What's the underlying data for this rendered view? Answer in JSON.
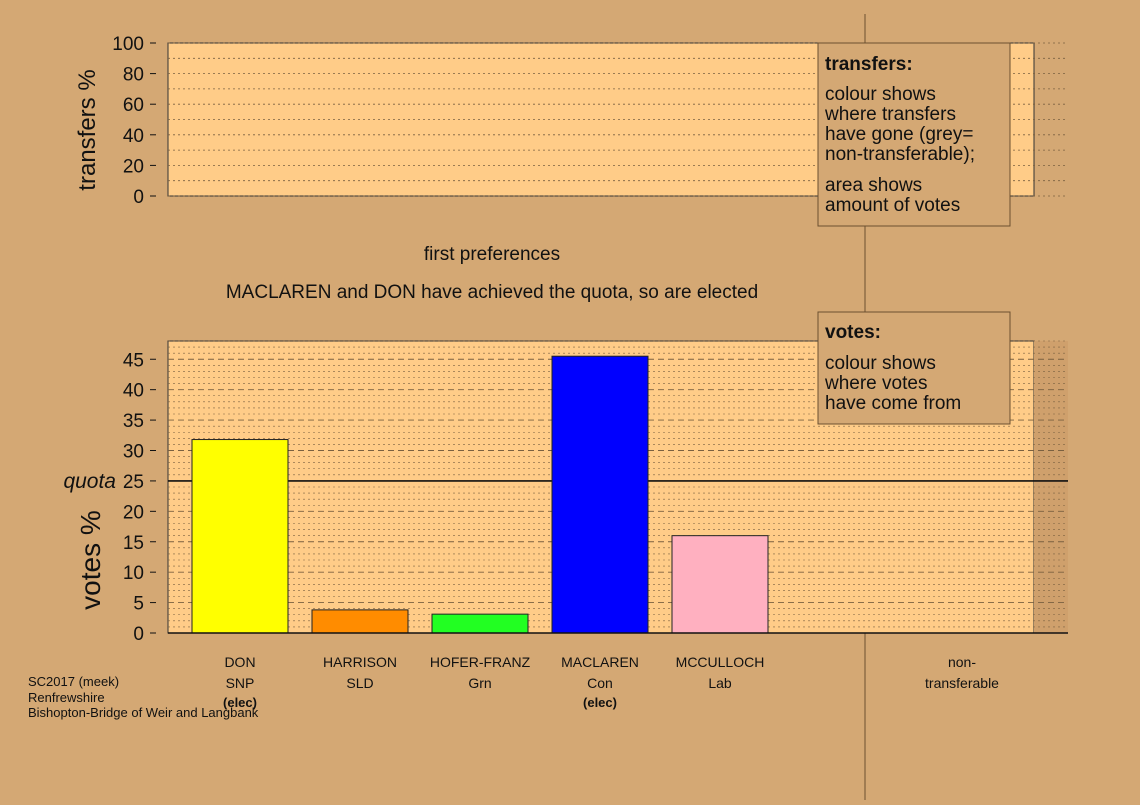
{
  "colors": {
    "background": "#d4a874",
    "panel": "#ffcc88",
    "panel_dark": "#cfa06c",
    "grid": "#7a6040"
  },
  "transfers_panel": {
    "ylabel": "transfers %",
    "ticks": [
      0,
      20,
      40,
      60,
      80,
      100
    ],
    "ylim": [
      0,
      100
    ]
  },
  "stage_title": "first preferences",
  "stage_note": "MACLAREN and DON have achieved the quota, so are elected",
  "legend_transfers": {
    "heading": "transfers:",
    "lines": [
      "colour shows",
      "where transfers",
      "have gone (grey=",
      "non-transferable);"
    ],
    "lines2": [
      "area shows",
      "amount of votes"
    ]
  },
  "legend_votes": {
    "heading": "votes:",
    "lines": [
      "colour shows",
      "where votes",
      "have come from"
    ]
  },
  "chart_data": {
    "type": "bar",
    "ylabel": "votes %",
    "ylim": [
      0,
      48
    ],
    "ticks": [
      0,
      5,
      10,
      15,
      20,
      25,
      30,
      35,
      40,
      45
    ],
    "quota": 25,
    "quota_label": "quota",
    "categories": [
      {
        "name": "DON",
        "party": "SNP",
        "value": 31.8,
        "color": "#ffff00",
        "elected": true
      },
      {
        "name": "HARRISON",
        "party": "SLD",
        "value": 3.8,
        "color": "#ff8c00",
        "elected": false
      },
      {
        "name": "HOFER-FRANZ",
        "party": "Grn",
        "value": 3.1,
        "color": "#22ff22",
        "elected": false
      },
      {
        "name": "MACLAREN",
        "party": "Con",
        "value": 45.5,
        "color": "#0000ff",
        "elected": true
      },
      {
        "name": "MCCULLOCH",
        "party": "Lab",
        "value": 16.0,
        "color": "#ffb0c0",
        "elected": false
      }
    ],
    "elected_label": "(elec)",
    "nontransferable": {
      "line1": "non-",
      "line2": "transferable",
      "value": 0
    }
  },
  "footer": {
    "line1": "SC2017 (meek)",
    "line2": "Renfrewshire",
    "line3": "Bishopton-Bridge of Weir and Langbank"
  }
}
